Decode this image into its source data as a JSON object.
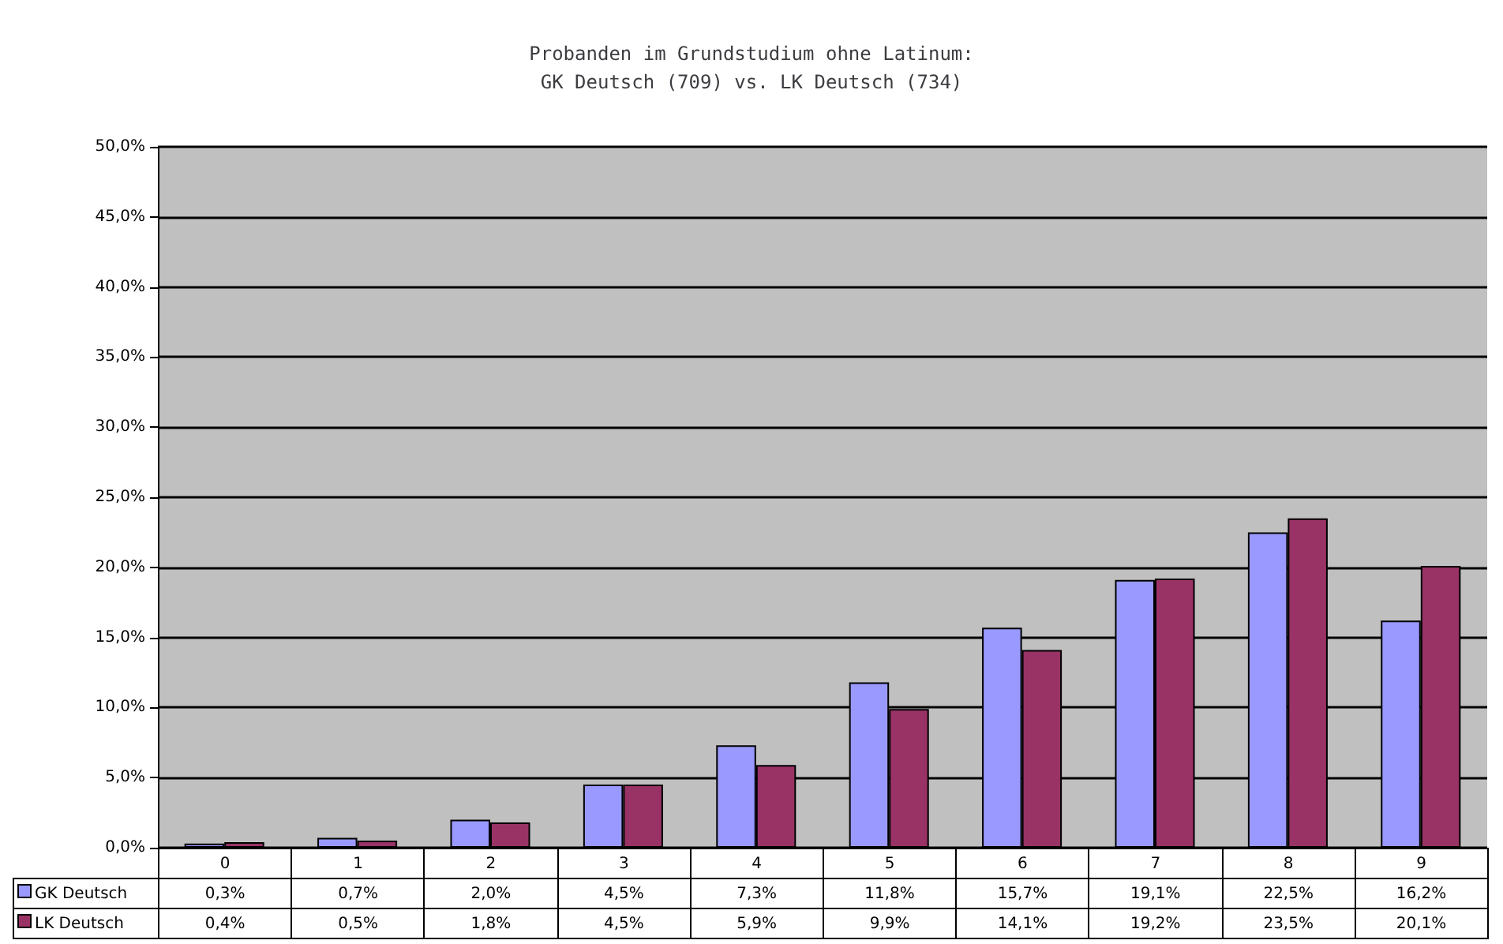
{
  "chart_data": {
    "type": "bar",
    "title": "Probanden im Grundstudium ohne Latinum:\nGK Deutsch (709) vs. LK Deutsch (734)",
    "categories": [
      "0",
      "1",
      "2",
      "3",
      "4",
      "5",
      "6",
      "7",
      "8",
      "9"
    ],
    "series": [
      {
        "name": "GK Deutsch",
        "color": "#9999ff",
        "values": [
          0.3,
          0.7,
          2.0,
          4.5,
          7.3,
          11.8,
          15.7,
          19.1,
          22.5,
          16.2
        ],
        "value_labels": [
          "0,3%",
          "0,7%",
          "2,0%",
          "4,5%",
          "7,3%",
          "11,8%",
          "15,7%",
          "19,1%",
          "22,5%",
          "16,2%"
        ]
      },
      {
        "name": "LK Deutsch",
        "color": "#993366",
        "values": [
          0.4,
          0.5,
          1.8,
          4.5,
          5.9,
          9.9,
          14.1,
          19.2,
          23.5,
          20.1
        ],
        "value_labels": [
          "0,4%",
          "0,5%",
          "1,8%",
          "4,5%",
          "5,9%",
          "9,9%",
          "14,1%",
          "19,2%",
          "23,5%",
          "20,1%"
        ]
      }
    ],
    "ylim": [
      0,
      50
    ],
    "yticks": [
      {
        "value": 0,
        "label": "0,0%"
      },
      {
        "value": 5,
        "label": "5,0%"
      },
      {
        "value": 10,
        "label": "10,0%"
      },
      {
        "value": 15,
        "label": "15,0%"
      },
      {
        "value": 20,
        "label": "20,0%"
      },
      {
        "value": 25,
        "label": "25,0%"
      },
      {
        "value": 30,
        "label": "30,0%"
      },
      {
        "value": 35,
        "label": "35,0%"
      },
      {
        "value": 40,
        "label": "40,0%"
      },
      {
        "value": 45,
        "label": "45,0%"
      },
      {
        "value": 50,
        "label": "50,0%"
      }
    ],
    "grid": "y",
    "legend": "bottom left"
  }
}
